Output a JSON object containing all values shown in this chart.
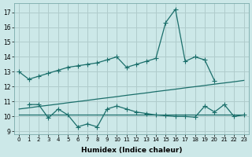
{
  "xlabel": "Humidex (Indice chaleur)",
  "background_color": "#cce8e8",
  "grid_color": "#b0cccc",
  "line_color": "#1a6e6a",
  "x_ticks": [
    0,
    1,
    2,
    3,
    4,
    5,
    6,
    7,
    8,
    9,
    10,
    11,
    12,
    13,
    14,
    15,
    16,
    17,
    18,
    19,
    20,
    21,
    22,
    23
  ],
  "ylim": [
    8.8,
    17.6
  ],
  "xlim": [
    -0.5,
    23.5
  ],
  "yticks": [
    9,
    10,
    11,
    12,
    13,
    14,
    15,
    16,
    17
  ],
  "line1_x": [
    0,
    1,
    2,
    3,
    4,
    5,
    6,
    7,
    8,
    9,
    10,
    11,
    12,
    13,
    14,
    15,
    16,
    17,
    18,
    19,
    20
  ],
  "line1_y": [
    13.0,
    12.5,
    12.7,
    12.9,
    13.1,
    13.3,
    13.4,
    13.5,
    13.6,
    13.8,
    14.0,
    13.3,
    13.5,
    13.7,
    13.9,
    16.3,
    17.2,
    13.7,
    14.0,
    13.8,
    12.4
  ],
  "line2_x": [
    0,
    1,
    2,
    3,
    4,
    5,
    6,
    7,
    8,
    9,
    10,
    11,
    12,
    13,
    14,
    15,
    16,
    17,
    18,
    19,
    20,
    21,
    22,
    23
  ],
  "line2_y": [
    10.5,
    10.58,
    10.67,
    10.75,
    10.83,
    10.92,
    11.0,
    11.08,
    11.17,
    11.25,
    11.33,
    11.42,
    11.5,
    11.58,
    11.67,
    11.75,
    11.83,
    11.92,
    12.0,
    12.08,
    12.17,
    12.25,
    12.33,
    12.42
  ],
  "line3_x": [
    0,
    1,
    2,
    3,
    4,
    5,
    6,
    7,
    8,
    9,
    10,
    11,
    12,
    13,
    14,
    15,
    16,
    17,
    18,
    19,
    20,
    21,
    22,
    23
  ],
  "line3_y": [
    10.1,
    10.1,
    10.1,
    10.1,
    10.1,
    10.1,
    10.1,
    10.1,
    10.1,
    10.1,
    10.1,
    10.1,
    10.1,
    10.1,
    10.1,
    10.1,
    10.1,
    10.1,
    10.1,
    10.1,
    10.1,
    10.1,
    10.1,
    10.1
  ],
  "line4_x": [
    1,
    2,
    3,
    4,
    5,
    6,
    7,
    8,
    9,
    10,
    11,
    12,
    13,
    14,
    15,
    16,
    17,
    18,
    19,
    20,
    21,
    22,
    23
  ],
  "line4_y": [
    10.8,
    10.8,
    9.9,
    10.5,
    10.1,
    9.3,
    9.5,
    9.3,
    10.5,
    10.7,
    10.5,
    10.3,
    10.2,
    10.1,
    10.05,
    10.0,
    10.0,
    9.95,
    10.7,
    10.3,
    10.8,
    10.0,
    10.1
  ]
}
